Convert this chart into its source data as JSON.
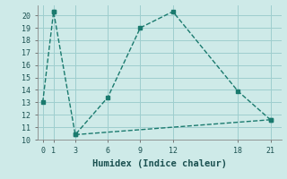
{
  "xlabel": "Humidex (Indice chaleur)",
  "bg_color": "#ceeae8",
  "grid_color": "#9ecece",
  "line_color": "#1a7a6e",
  "line1_x": [
    0,
    1,
    1,
    3,
    6,
    9,
    12,
    18,
    21
  ],
  "line1_y": [
    13,
    20.3,
    20.3,
    10.4,
    13.4,
    19.0,
    20.3,
    13.9,
    11.6
  ],
  "line2_x": [
    3,
    21
  ],
  "line2_y": [
    10.4,
    11.6
  ],
  "xlim": [
    -0.5,
    22
  ],
  "ylim": [
    10,
    20.8
  ],
  "xticks": [
    0,
    1,
    3,
    6,
    9,
    12,
    18,
    21
  ],
  "yticks": [
    10,
    11,
    12,
    13,
    14,
    15,
    16,
    17,
    18,
    19,
    20
  ],
  "xlabel_fontsize": 7.5
}
